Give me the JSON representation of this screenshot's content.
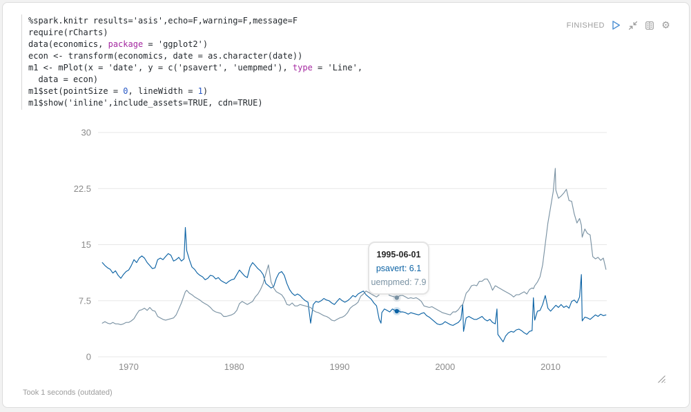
{
  "status": {
    "label": "FINISHED",
    "icons": [
      {
        "name": "play-icon",
        "action": "run paragraph"
      },
      {
        "name": "compress-icon",
        "action": "collapse editor"
      },
      {
        "name": "book-icon",
        "action": "toggle output"
      },
      {
        "name": "gear-icon",
        "action": "paragraph settings",
        "glyph": "⚙"
      }
    ]
  },
  "code": {
    "lines": [
      [
        {
          "c": "d",
          "t": "%spark.knitr results='asis',echo=F,warning=F,message=F"
        }
      ],
      [
        {
          "c": "d",
          "t": "require(rCharts)"
        }
      ],
      [
        {
          "c": "d",
          "t": "data(economics, "
        },
        {
          "c": "k",
          "t": "package"
        },
        {
          "c": "d",
          "t": " = 'ggplot2')"
        }
      ],
      [
        {
          "c": "d",
          "t": "econ <- transform(economics, date = as.character(date))"
        }
      ],
      [
        {
          "c": "d",
          "t": "m1 <- mPlot(x = 'date', y = c('psavert', 'uempmed'), "
        },
        {
          "c": "k",
          "t": "type"
        },
        {
          "c": "d",
          "t": " = 'Line',"
        }
      ],
      [
        {
          "c": "d",
          "t": "  data = econ)"
        }
      ],
      [
        {
          "c": "d",
          "t": "m1$set(pointSize = "
        },
        {
          "c": "n",
          "t": "0"
        },
        {
          "c": "d",
          "t": ", lineWidth = "
        },
        {
          "c": "n",
          "t": "1"
        },
        {
          "c": "d",
          "t": ")"
        }
      ],
      [
        {
          "c": "d",
          "t": "m1$show('inline',include_assets=TRUE, cdn=TRUE)"
        }
      ]
    ]
  },
  "tooltip": {
    "date": "1995-06-01",
    "rows": [
      {
        "text": "psavert: 6.1",
        "color": "#0b62a4"
      },
      {
        "text": "uempmed: 7.9",
        "color": "#7a92a3"
      }
    ]
  },
  "footer": {
    "text": "Took 1 seconds (outdated)"
  },
  "chart_data": {
    "type": "line",
    "title": "",
    "xlabel": "",
    "ylabel": "",
    "xlim": [
      1967.42,
      2015.33
    ],
    "ylim": [
      0,
      30
    ],
    "grid": true,
    "legend": "none (hover tooltip shows series)",
    "x_ticks": [
      {
        "value": 1970,
        "label": "1970"
      },
      {
        "value": 1980,
        "label": "1980"
      },
      {
        "value": 1990,
        "label": "1990"
      },
      {
        "value": 2000,
        "label": "2000"
      },
      {
        "value": 2010,
        "label": "2010"
      }
    ],
    "y_ticks": [
      {
        "value": 0,
        "label": "0"
      },
      {
        "value": 7.5,
        "label": "7.5"
      },
      {
        "value": 15,
        "label": "15"
      },
      {
        "value": 22.5,
        "label": "22.5"
      },
      {
        "value": 30,
        "label": "30"
      }
    ],
    "hover": {
      "date": "1995-06-01",
      "x": 1995.42,
      "psavert": 6.1,
      "uempmed": 7.9
    },
    "x": [
      1967.5,
      1967.75,
      1968,
      1968.25,
      1968.5,
      1968.75,
      1969,
      1969.25,
      1969.5,
      1969.75,
      1970,
      1970.25,
      1970.5,
      1970.75,
      1971,
      1971.25,
      1971.5,
      1971.75,
      1972,
      1972.25,
      1972.5,
      1972.75,
      1973,
      1973.25,
      1973.5,
      1973.75,
      1974,
      1974.25,
      1974.5,
      1974.75,
      1975,
      1975.25,
      1975.37,
      1975.5,
      1975.75,
      1976,
      1976.25,
      1976.5,
      1976.75,
      1977,
      1977.25,
      1977.5,
      1977.75,
      1978,
      1978.25,
      1978.5,
      1978.75,
      1979,
      1979.25,
      1979.5,
      1979.75,
      1980,
      1980.25,
      1980.5,
      1980.75,
      1981,
      1981.25,
      1981.5,
      1981.75,
      1982,
      1982.25,
      1982.5,
      1982.75,
      1983,
      1983.25,
      1983.5,
      1983.75,
      1984,
      1984.25,
      1984.5,
      1984.75,
      1985,
      1985.25,
      1985.5,
      1985.75,
      1986,
      1986.25,
      1986.5,
      1986.75,
      1987,
      1987.25,
      1987.5,
      1987.75,
      1988,
      1988.25,
      1988.5,
      1988.75,
      1989,
      1989.25,
      1989.5,
      1989.75,
      1990,
      1990.25,
      1990.5,
      1990.75,
      1991,
      1991.25,
      1991.5,
      1991.75,
      1992,
      1992.25,
      1992.5,
      1992.75,
      1993,
      1993.25,
      1993.5,
      1993.75,
      1993.92,
      1994,
      1994.25,
      1994.5,
      1994.75,
      1995,
      1995.25,
      1995.42,
      1995.5,
      1995.75,
      1996,
      1996.25,
      1996.5,
      1996.75,
      1997,
      1997.25,
      1997.5,
      1997.75,
      1998,
      1998.25,
      1998.5,
      1998.75,
      1999,
      1999.25,
      1999.5,
      1999.75,
      2000,
      2000.25,
      2000.5,
      2000.75,
      2001,
      2001.25,
      2001.5,
      2001.67,
      2001.75,
      2002,
      2002.25,
      2002.5,
      2002.75,
      2003,
      2003.25,
      2003.5,
      2003.75,
      2004,
      2004.25,
      2004.5,
      2004.75,
      2004.92,
      2005,
      2005.25,
      2005.5,
      2005.75,
      2006,
      2006.25,
      2006.5,
      2006.75,
      2007,
      2007.25,
      2007.5,
      2007.75,
      2008,
      2008.25,
      2008.37,
      2008.5,
      2008.75,
      2009,
      2009.25,
      2009.5,
      2009.75,
      2010,
      2010.25,
      2010.45,
      2010.5,
      2010.75,
      2011,
      2011.25,
      2011.5,
      2011.75,
      2012,
      2012.25,
      2012.5,
      2012.75,
      2012.92,
      2013,
      2013.25,
      2013.5,
      2013.75,
      2014,
      2014.25,
      2014.5,
      2014.75,
      2015,
      2015.25
    ],
    "series": [
      {
        "name": "psavert",
        "color": "#0b62a4",
        "values": [
          12.6,
          12.2,
          11.9,
          11.7,
          11.2,
          11.5,
          10.9,
          10.5,
          11.0,
          11.4,
          11.6,
          12.2,
          13.0,
          12.6,
          13.2,
          13.5,
          13.2,
          12.6,
          12.2,
          11.8,
          11.9,
          13.0,
          13.2,
          13.0,
          13.4,
          13.8,
          13.6,
          12.8,
          13.0,
          13.3,
          12.8,
          13.1,
          17.3,
          14.2,
          13.0,
          12.0,
          11.7,
          11.2,
          10.9,
          10.7,
          10.3,
          10.5,
          10.9,
          10.8,
          10.4,
          10.6,
          10.2,
          10.0,
          9.8,
          10.1,
          10.3,
          10.4,
          11.0,
          11.6,
          11.2,
          10.8,
          10.6,
          12.0,
          12.6,
          12.2,
          11.8,
          11.5,
          11.0,
          9.8,
          9.5,
          9.2,
          9.4,
          10.5,
          11.2,
          11.4,
          10.9,
          9.8,
          9.0,
          8.5,
          8.2,
          8.4,
          8.2,
          7.8,
          7.5,
          7.3,
          4.5,
          7.0,
          7.4,
          7.3,
          7.5,
          7.8,
          7.6,
          7.5,
          7.2,
          7.0,
          7.4,
          7.8,
          7.5,
          7.3,
          7.5,
          7.8,
          8.2,
          8.0,
          8.4,
          8.6,
          8.8,
          8.3,
          8.0,
          7.7,
          7.2,
          6.8,
          5.0,
          4.5,
          5.9,
          6.4,
          6.2,
          6.0,
          6.4,
          6.2,
          6.1,
          6.3,
          6.0,
          6.0,
          5.9,
          5.7,
          5.9,
          5.8,
          5.7,
          5.6,
          5.8,
          5.9,
          5.5,
          5.3,
          5.0,
          4.7,
          4.4,
          4.3,
          4.4,
          4.7,
          4.5,
          4.3,
          4.2,
          4.4,
          4.6,
          5.0,
          7.0,
          3.4,
          5.2,
          5.4,
          5.2,
          5.0,
          5.0,
          5.2,
          5.4,
          5.0,
          4.8,
          5.0,
          4.6,
          4.4,
          6.4,
          3.0,
          2.5,
          2.0,
          2.8,
          3.2,
          3.4,
          3.3,
          3.6,
          3.7,
          3.5,
          3.2,
          3.0,
          3.4,
          3.5,
          7.9,
          4.9,
          6.1,
          6.2,
          7.0,
          8.2,
          6.5,
          6.1,
          6.5,
          6.8,
          6.9,
          6.6,
          7.0,
          6.6,
          6.8,
          6.5,
          7.4,
          7.6,
          7.2,
          8.0,
          11.0,
          4.8,
          5.3,
          5.2,
          5.0,
          5.3,
          5.6,
          5.4,
          5.7,
          5.5,
          5.6
        ]
      },
      {
        "name": "uempmed",
        "color": "#7a92a3",
        "values": [
          4.5,
          4.7,
          4.5,
          4.4,
          4.6,
          4.4,
          4.4,
          4.3,
          4.4,
          4.6,
          4.6,
          4.8,
          5.1,
          5.7,
          6.2,
          6.3,
          6.5,
          6.2,
          6.6,
          6.2,
          6.1,
          5.4,
          5.2,
          5.0,
          4.9,
          5.0,
          5.1,
          5.2,
          5.6,
          6.4,
          7.2,
          8.2,
          8.7,
          8.9,
          8.5,
          8.3,
          8.0,
          7.8,
          7.6,
          7.3,
          7.1,
          6.9,
          6.6,
          6.2,
          6.0,
          5.9,
          5.8,
          5.4,
          5.4,
          5.5,
          5.6,
          5.8,
          6.2,
          7.1,
          7.4,
          7.2,
          7.0,
          7.2,
          7.4,
          8.0,
          8.4,
          9.0,
          9.8,
          11.1,
          12.3,
          10.0,
          9.2,
          8.7,
          8.5,
          8.3,
          7.8,
          7.0,
          6.9,
          7.2,
          6.8,
          6.8,
          7.0,
          6.9,
          6.8,
          6.7,
          6.6,
          6.2,
          6.0,
          5.9,
          5.7,
          5.5,
          5.4,
          5.2,
          4.9,
          4.8,
          5.0,
          5.2,
          5.3,
          5.5,
          5.9,
          6.5,
          6.8,
          7.0,
          7.3,
          8.1,
          8.4,
          8.8,
          8.6,
          8.4,
          8.2,
          8.0,
          8.3,
          8.8,
          9.1,
          9.3,
          8.5,
          8.2,
          8.1,
          8.0,
          7.9,
          8.0,
          8.2,
          8.2,
          8.0,
          7.8,
          7.9,
          7.8,
          7.9,
          7.7,
          7.4,
          6.8,
          6.7,
          6.6,
          6.7,
          6.5,
          6.3,
          6.1,
          5.9,
          5.8,
          5.7,
          5.6,
          6.0,
          6.0,
          6.3,
          6.8,
          7.0,
          7.3,
          8.5,
          8.9,
          9.5,
          9.6,
          9.5,
          10.1,
          10.1,
          10.4,
          10.4,
          9.8,
          8.9,
          9.5,
          9.4,
          9.3,
          9.1,
          8.9,
          8.7,
          8.5,
          8.3,
          8.0,
          8.3,
          8.3,
          8.5,
          8.7,
          8.4,
          9.0,
          9.2,
          9.1,
          9.5,
          10.0,
          10.7,
          12.3,
          15.1,
          17.9,
          20.0,
          22.1,
          25.2,
          22.3,
          21.2,
          21.5,
          21.9,
          22.4,
          20.9,
          20.8,
          19.1,
          17.9,
          18.5,
          17.6,
          16.0,
          17.1,
          16.5,
          16.3,
          13.4,
          13.1,
          13.3,
          12.9,
          13.2,
          11.7
        ]
      }
    ]
  }
}
